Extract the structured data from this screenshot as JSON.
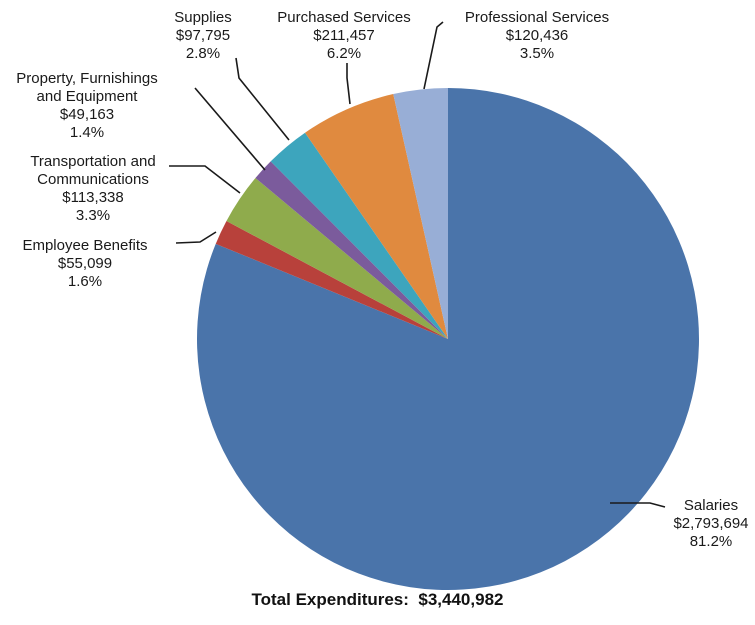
{
  "chart_data": {
    "type": "pie",
    "title": "",
    "slices": [
      {
        "label": "Salaries",
        "amount": "$2,793,694",
        "percent_label": "81.2%",
        "value": 2793694,
        "color": "#4a74aa"
      },
      {
        "label": "Employee Benefits",
        "amount": "$55,099",
        "percent_label": "1.6%",
        "value": 55099,
        "color": "#b8413b"
      },
      {
        "label": "Transportation and Communications",
        "amount": "$113,338",
        "percent_label": "3.3%",
        "value": 113338,
        "color": "#8fab4c"
      },
      {
        "label": "Property, Furnishings and Equipment",
        "amount": "$49,163",
        "percent_label": "1.4%",
        "value": 49163,
        "color": "#7b5b9c"
      },
      {
        "label": "Supplies",
        "amount": "$97,795",
        "percent_label": "2.8%",
        "value": 97795,
        "color": "#3da5bd"
      },
      {
        "label": "Purchased Services",
        "amount": "$211,457",
        "percent_label": "6.2%",
        "value": 211457,
        "color": "#e08a3f"
      },
      {
        "label": "Professional Services",
        "amount": "$120,436",
        "percent_label": "3.5%",
        "value": 120436,
        "color": "#98aed6"
      }
    ],
    "total_label": "Total Expenditures:",
    "total_value": "$3,440,982"
  }
}
